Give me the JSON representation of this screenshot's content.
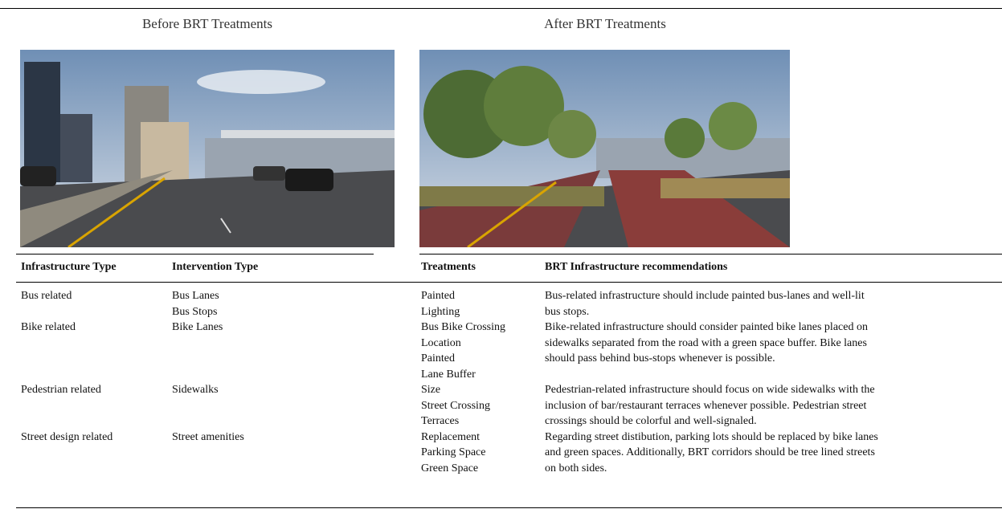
{
  "panels": {
    "before": "Before BRT Treatments",
    "after": "After BRT Treatments"
  },
  "table": {
    "headers": [
      "Infrastructure Type",
      "Intervention Type",
      "Treatments",
      "BRT Infrastructure recommendations"
    ],
    "rows": [
      {
        "infrastructure": "Bus related",
        "interventions": [
          "Bus Lanes",
          "Bus Stops"
        ],
        "treatments": [
          "Painted",
          "Lighting"
        ],
        "recommendation": [
          "Bus-related infrastructure should include painted bus-lanes and well-lit",
          "bus stops."
        ]
      },
      {
        "infrastructure": "Bike related",
        "interventions": [
          "Bike Lanes"
        ],
        "treatments": [
          "Bus Bike Crossing",
          "Location",
          "Painted",
          "Lane Buffer"
        ],
        "recommendation": [
          "Bike-related infrastructure should consider painted bike lanes placed on",
          "sidewalks separated from the road with a green space buffer. Bike lanes",
          "should pass behind bus-stops whenever is possible."
        ]
      },
      {
        "infrastructure": "Pedestrian related",
        "interventions": [
          "Sidewalks"
        ],
        "treatments": [
          "Size",
          "Street Crossing",
          "Terraces"
        ],
        "recommendation": [
          "Pedestrian-related infrastructure should focus on wide sidewalks with the",
          "inclusion of bar/restaurant terraces whenever possible. Pedestrian street",
          "crossings should be colorful and well-signaled."
        ]
      },
      {
        "infrastructure": "Street design related",
        "interventions": [
          "Street amenities"
        ],
        "treatments": [
          "Replacement",
          "Parking Space",
          "Green Space"
        ],
        "recommendation": [
          "Regarding street distibution, parking lots should be replaced by bike lanes",
          "and green spaces. Additionally, BRT corridors should be tree lined streets",
          "on both sides."
        ]
      }
    ]
  }
}
